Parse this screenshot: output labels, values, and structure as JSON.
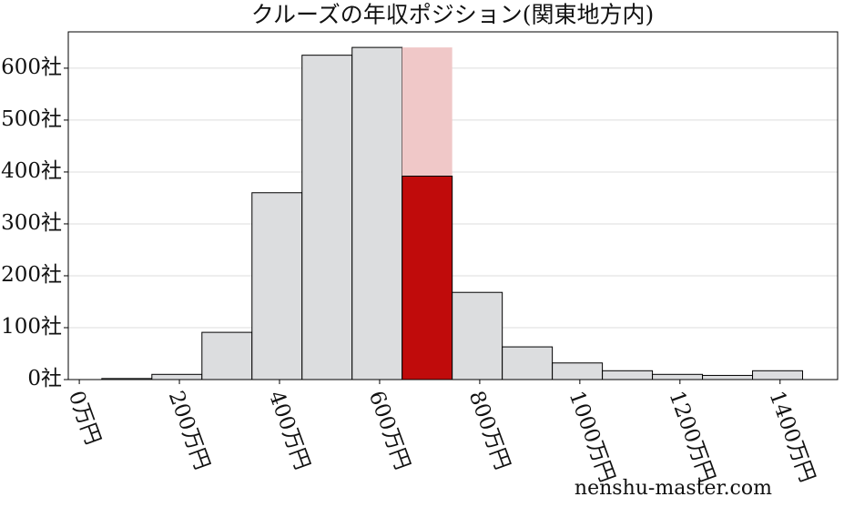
{
  "chart_data": {
    "type": "histogram",
    "title": "クルーズの年収ポジション(関東地方内)",
    "bins": [
      45,
      145,
      245,
      345,
      445,
      545,
      645,
      745,
      845,
      945,
      1045,
      1145,
      1245,
      1345,
      1445
    ],
    "values": [
      2,
      10,
      91,
      360,
      625,
      640,
      392,
      168,
      63,
      32,
      17,
      10,
      8,
      17
    ],
    "color": "#dcdddf",
    "highlight_index": 6,
    "highlight_color": "#c00b0b",
    "highlight_band_color": "#f0c8c8",
    "xlim": [
      -22,
      1515
    ],
    "ylim": [
      0,
      670
    ],
    "xticks": [
      {
        "value": 0,
        "label": "0万円"
      },
      {
        "value": 200,
        "label": "200万円"
      },
      {
        "value": 400,
        "label": "400万円"
      },
      {
        "value": 600,
        "label": "600万円"
      },
      {
        "value": 800,
        "label": "800万円"
      },
      {
        "value": 1000,
        "label": "1000万円"
      },
      {
        "value": 1200,
        "label": "1200万円"
      },
      {
        "value": 1400,
        "label": "1400万円"
      }
    ],
    "yticks": [
      {
        "value": 0,
        "label": "0社"
      },
      {
        "value": 100,
        "label": "100社"
      },
      {
        "value": 200,
        "label": "200社"
      },
      {
        "value": 300,
        "label": "300社"
      },
      {
        "value": 400,
        "label": "400社"
      },
      {
        "value": 500,
        "label": "500社"
      },
      {
        "value": 600,
        "label": "600社"
      }
    ],
    "grid": true,
    "watermark": "nenshu-master.com"
  }
}
